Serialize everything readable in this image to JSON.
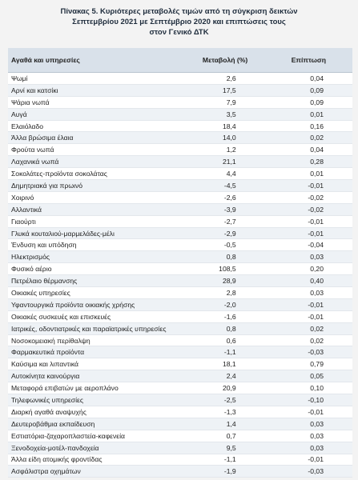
{
  "header": {
    "title_lines": [
      "Πίνακας  5. Κυριότερες μεταβολές τιμών από τη σύγκριση δεικτών",
      "Σεπτεμβρίου 2021 με Σεπτέμβριο 2020 και επιπτώσεις τους",
      "στον Γενικό ΔΤΚ"
    ]
  },
  "table": {
    "columns": [
      "Αγαθά και υπηρεσίες",
      "Μεταβολή (%)",
      "Επίπτωση"
    ],
    "rows": [
      [
        "Ψωμί",
        "2,6",
        "0,04"
      ],
      [
        "Αρνί και κατσίκι",
        "17,5",
        "0,09"
      ],
      [
        "Ψάρια νωπά",
        "7,9",
        "0,09"
      ],
      [
        "Αυγά",
        "3,5",
        "0,01"
      ],
      [
        "Ελαιόλαδο",
        "18,4",
        "0,16"
      ],
      [
        "Άλλα βρώσιμα έλαια",
        "14,0",
        "0,02"
      ],
      [
        "Φρούτα νωπά",
        "1,2",
        "0,04"
      ],
      [
        "Λαχανικά νωπά",
        "21,1",
        "0,28"
      ],
      [
        "Σοκολάτες-προϊόντα σοκολάτας",
        "4,4",
        "0,01"
      ],
      [
        "Δημητριακά για πρωινό",
        "-4,5",
        "-0,01"
      ],
      [
        "Χοιρινό",
        "-2,6",
        "-0,02"
      ],
      [
        "Αλλαντικά",
        "-3,9",
        "-0,02"
      ],
      [
        "Γιαούρτι",
        "-2,7",
        "-0,01"
      ],
      [
        "Γλυκά κουταλιού-μαρμελάδες-μέλι",
        "-2,9",
        "-0,01"
      ],
      [
        "Ένδυση και υπόδηση",
        "-0,5",
        "-0,04"
      ],
      [
        "Ηλεκτρισμός",
        "0,8",
        "0,03"
      ],
      [
        "Φυσικό αέριο",
        "108,5",
        "0,20"
      ],
      [
        "Πετρέλαιο θέρμανσης",
        "28,9",
        "0,40"
      ],
      [
        "Οικιακές υπηρεσίες",
        "2,8",
        "0,03"
      ],
      [
        "Υφαντουργικά προϊόντα οικιακής χρήσης",
        "-2,0",
        "-0,01"
      ],
      [
        "Οικιακές συσκευές και επισκευές",
        "-1,6",
        "-0,01"
      ],
      [
        "Ιατρικές, οδοντιατρικές και παραϊατρικές υπηρεσίες",
        "0,8",
        "0,02"
      ],
      [
        "Νοσοκομειακή περίθαλψη",
        "0,6",
        "0,02"
      ],
      [
        "Φαρμακευτικά προϊόντα",
        "-1,1",
        "-0,03"
      ],
      [
        "Καύσιμα και λιπαντικά",
        "18,1",
        "0,79"
      ],
      [
        "Αυτοκίνητα καινούργια",
        "2,4",
        "0,05"
      ],
      [
        "Μεταφορά επιβατών με αεροπλάνο",
        "20,9",
        "0,10"
      ],
      [
        "Τηλεφωνικές υπηρεσίες",
        "-2,5",
        "-0,10"
      ],
      [
        "Διαρκή αγαθά αναψυχής",
        "-1,3",
        "-0,01"
      ],
      [
        "Δευτεροβάθμια εκπαίδευση",
        "1,4",
        "0,03"
      ],
      [
        "Εστιατόρια-ζαχαροπλαστεία-καφενεία",
        "0,7",
        "0,03"
      ],
      [
        "Ξενοδοχεία-μοτέλ-πανδοχεία",
        "9,5",
        "0,03"
      ],
      [
        "Άλλα είδη ατομικής φροντίδας",
        "-1,1",
        "-0,01"
      ],
      [
        "Ασφάλιστρα οχημάτων",
        "-1,9",
        "-0,03"
      ]
    ]
  }
}
